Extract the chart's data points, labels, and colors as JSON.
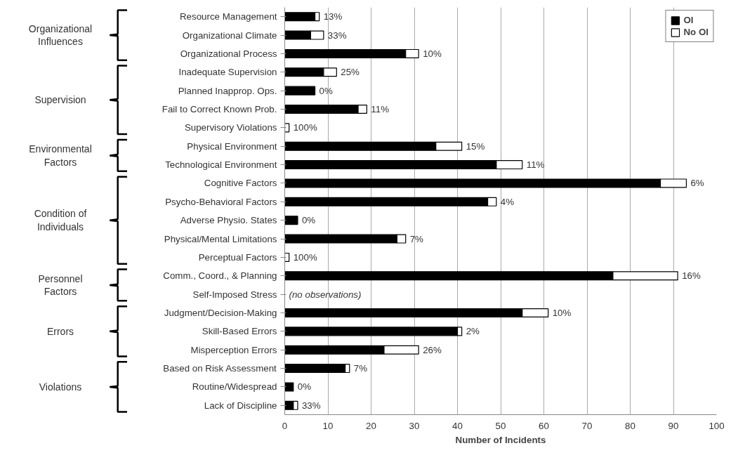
{
  "chart_data": {
    "type": "bar",
    "orientation": "horizontal",
    "stacked": true,
    "xlabel": "Number of Incidents",
    "categories": [
      "Resource Management",
      "Organizational Climate",
      "Organizational Process",
      "Inadequate Supervision",
      "Planned Inapprop. Ops.",
      "Fail to Correct Known Prob.",
      "Supervisory Violations",
      "Physical Environment",
      "Technological Environment",
      "Cognitive Factors",
      "Psycho-Behavioral Factors",
      "Adverse Physio. States",
      "Physical/Mental Limitations",
      "Perceptual Factors",
      "Comm., Coord., & Planning",
      "Self-Imposed Stress",
      "Judgment/Decision-Making",
      "Skill-Based Errors",
      "Misperception Errors",
      "Based on Risk Assessment",
      "Routine/Widespread",
      "Lack of Discipline"
    ],
    "series": [
      {
        "name": "OI",
        "color": "#000000",
        "values": [
          7,
          6,
          28,
          9,
          7,
          17,
          0,
          35,
          49,
          87,
          47,
          3,
          26,
          0,
          76,
          null,
          55,
          40,
          23,
          14,
          2,
          2
        ]
      },
      {
        "name": "No OI",
        "color": "#ffffff",
        "values": [
          1,
          3,
          3,
          3,
          0,
          2,
          1,
          6,
          6,
          6,
          2,
          0,
          2,
          1,
          15,
          null,
          6,
          1,
          8,
          1,
          0,
          1
        ]
      }
    ],
    "annotations": [
      "Organizational Influences",
      "Supervision",
      "Environmental Factors",
      "Condition of Individuals",
      "Personnel Factors",
      "Errors",
      "Violations",
      "(no observations)",
      {
        "text": "13%",
        "x": 8,
        "y": "Resource Management"
      },
      {
        "text": "33%",
        "x": 9,
        "y": "Organizational Climate"
      },
      {
        "text": "10%",
        "x": 31,
        "y": "Organizational Process"
      },
      {
        "text": "25%",
        "x": 12,
        "y": "Inadequate Supervision"
      },
      {
        "text": "0%",
        "x": 7,
        "y": "Planned Inapprop. Ops."
      },
      {
        "text": "11%",
        "x": 19,
        "y": "Fail to Correct Known Prob."
      },
      {
        "text": "100%",
        "x": 1,
        "y": "Supervisory Violations"
      },
      {
        "text": "15%",
        "x": 41,
        "y": "Physical Environment"
      },
      {
        "text": "11%",
        "x": 55,
        "y": "Technological Environment"
      },
      {
        "text": "6%",
        "x": 93,
        "y": "Cognitive Factors"
      },
      {
        "text": "4%",
        "x": 49,
        "y": "Psycho-Behavioral Factors"
      },
      {
        "text": "0%",
        "x": 3,
        "y": "Adverse Physio. States"
      },
      {
        "text": "7%",
        "x": 28,
        "y": "Physical/Mental Limitations"
      },
      {
        "text": "100%",
        "x": 1,
        "y": "Perceptual Factors"
      },
      {
        "text": "16%",
        "x": 91,
        "y": "Comm., Coord., & Planning"
      },
      {
        "text": "10%",
        "x": 61,
        "y": "Judgment/Decision-Making"
      },
      {
        "text": "2%",
        "x": 41,
        "y": "Skill-Based Errors"
      },
      {
        "text": "26%",
        "x": 31,
        "y": "Misperception Errors"
      },
      {
        "text": "7%",
        "x": 15,
        "y": "Based on Risk Assessment"
      },
      {
        "text": "0%",
        "x": 2,
        "y": "Routine/Widespread"
      },
      {
        "text": "33%",
        "x": 3,
        "y": "Lack of Discipline"
      }
    ],
    "xlim": [
      0,
      100
    ],
    "xticks": [
      0,
      10,
      20,
      30,
      40,
      50,
      60,
      70,
      80,
      90,
      100
    ],
    "grid": "x",
    "legend": "top right"
  }
}
